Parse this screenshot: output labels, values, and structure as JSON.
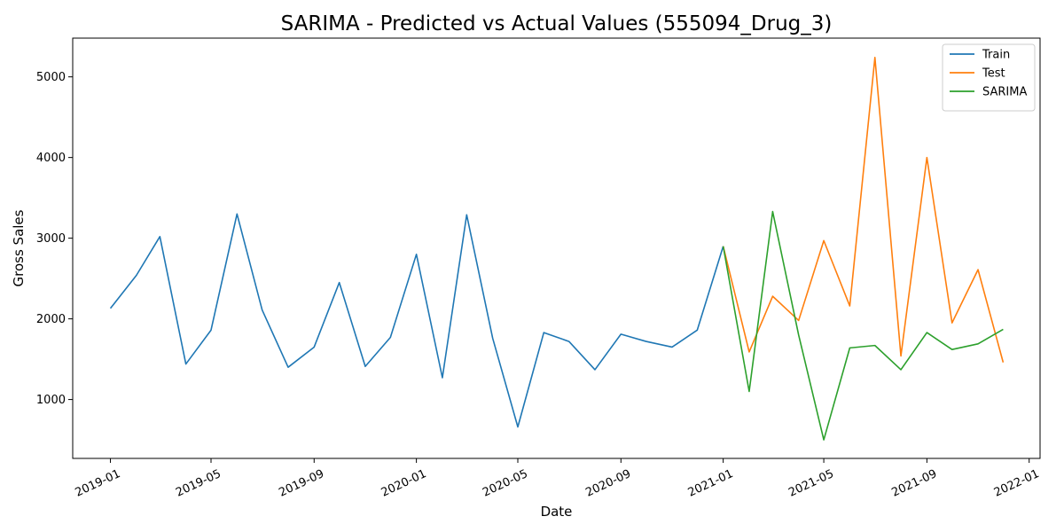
{
  "chart_data": {
    "type": "line",
    "title": "SARIMA - Predicted vs Actual Values (555094_Drug_3)",
    "xlabel": "Date",
    "ylabel": "Gross Sales",
    "xlim": [
      "2018-11-17",
      "2022-01-14"
    ],
    "ylim": [
      270,
      5480
    ],
    "x_ticks": [
      "2019-01",
      "2019-05",
      "2019-09",
      "2020-01",
      "2020-05",
      "2020-09",
      "2021-01",
      "2021-05",
      "2021-09",
      "2022-01"
    ],
    "y_ticks": [
      1000,
      2000,
      3000,
      4000,
      5000
    ],
    "grid": false,
    "legend_position": "top-right",
    "series": [
      {
        "name": "Train",
        "color": "#1f77b4",
        "x": [
          "2019-01",
          "2019-02",
          "2019-03",
          "2019-04",
          "2019-05",
          "2019-06",
          "2019-07",
          "2019-08",
          "2019-09",
          "2019-10",
          "2019-11",
          "2019-12",
          "2020-01",
          "2020-02",
          "2020-03",
          "2020-04",
          "2020-05",
          "2020-06",
          "2020-07",
          "2020-08",
          "2020-09",
          "2020-10",
          "2020-11",
          "2020-12",
          "2021-01"
        ],
        "values": [
          2130,
          2540,
          3020,
          1440,
          1860,
          3300,
          2110,
          1400,
          1650,
          2450,
          1410,
          1770,
          2800,
          1270,
          3290,
          1760,
          660,
          1830,
          1720,
          1370,
          1810,
          1720,
          1650,
          1860,
          2900
        ]
      },
      {
        "name": "Test",
        "color": "#ff7f0e",
        "x": [
          "2021-01",
          "2021-02",
          "2021-03",
          "2021-04",
          "2021-05",
          "2021-06",
          "2021-07",
          "2021-08",
          "2021-09",
          "2021-10",
          "2021-11",
          "2021-12"
        ],
        "values": [
          2900,
          1590,
          2280,
          1980,
          2970,
          2160,
          5240,
          1540,
          4000,
          1950,
          2610,
          1460
        ]
      },
      {
        "name": "SARIMA",
        "color": "#2ca02c",
        "x": [
          "2021-01",
          "2021-02",
          "2021-03",
          "2021-04",
          "2021-05",
          "2021-06",
          "2021-07",
          "2021-08",
          "2021-09",
          "2021-10",
          "2021-11",
          "2021-12"
        ],
        "values": [
          2900,
          1100,
          3330,
          1800,
          500,
          1640,
          1670,
          1370,
          1830,
          1620,
          1690,
          1870
        ]
      }
    ]
  }
}
